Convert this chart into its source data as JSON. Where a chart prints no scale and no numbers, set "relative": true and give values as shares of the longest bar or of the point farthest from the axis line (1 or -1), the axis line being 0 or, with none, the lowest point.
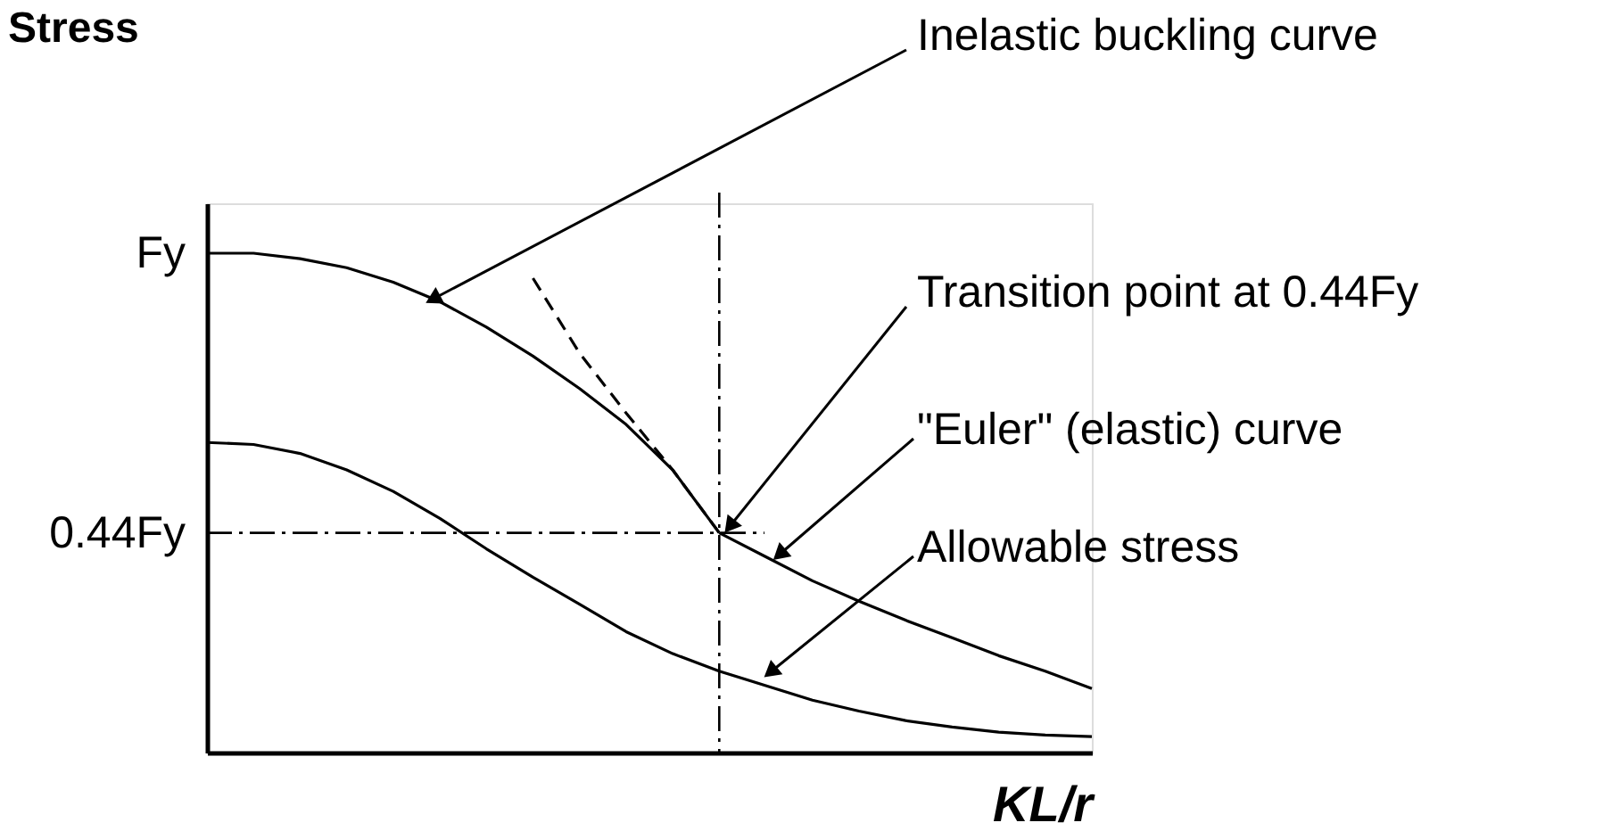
{
  "chart_data": {
    "type": "line",
    "xlabel": "KL/r",
    "ylabel": "Stress",
    "categories": [
      null,
      null,
      null,
      null,
      null,
      null,
      null,
      null,
      null,
      null,
      null,
      null,
      null,
      null,
      null,
      null,
      null,
      null,
      null,
      null
    ],
    "relative": true,
    "grid": false,
    "marker": "none",
    "series": [
      {
        "color": "#000000",
        "line_style": "solid",
        "values": [
          1.0,
          1.0,
          0.989,
          0.971,
          0.942,
          0.903,
          0.852,
          0.794,
          0.729,
          0.657,
          0.566,
          0.44,
          null,
          null,
          null,
          null,
          null,
          null,
          null,
          null
        ]
      },
      {
        "color": "#000000",
        "line_style": "solid",
        "values": [
          null,
          null,
          null,
          null,
          null,
          null,
          null,
          null,
          null,
          null,
          null,
          0.44,
          0.392,
          0.344,
          0.303,
          0.265,
          0.23,
          0.194,
          0.163,
          0.128
        ]
      },
      {
        "color": "#000000",
        "line_style": "dashed",
        "values": [
          null,
          null,
          null,
          null,
          null,
          null,
          null,
          0.95,
          0.8,
          0.68,
          0.566,
          0.44,
          null,
          null,
          null,
          null,
          null,
          null,
          null,
          null
        ]
      },
      {
        "color": "#000000",
        "line_style": "solid",
        "values": [
          0.621,
          0.617,
          0.599,
          0.566,
          0.523,
          0.469,
          0.408,
          0.351,
          0.297,
          0.242,
          0.198,
          0.163,
          0.134,
          0.105,
          0.083,
          0.064,
          0.051,
          0.041,
          0.035,
          0.032
        ]
      }
    ],
    "ref_lines": [
      {
        "axis": "y",
        "value": 0.44,
        "label": "0.44Fy",
        "line_style": "dashed",
        "color": "#000000"
      },
      {
        "axis": "x",
        "line_style": "dashed",
        "color": "#000000"
      }
    ],
    "annotations": [
      "Fy",
      "Inelastic buckling curve",
      "Transition point at 0.44Fy",
      "\"Euler\" (elastic) curve",
      "Allowable stress"
    ]
  }
}
